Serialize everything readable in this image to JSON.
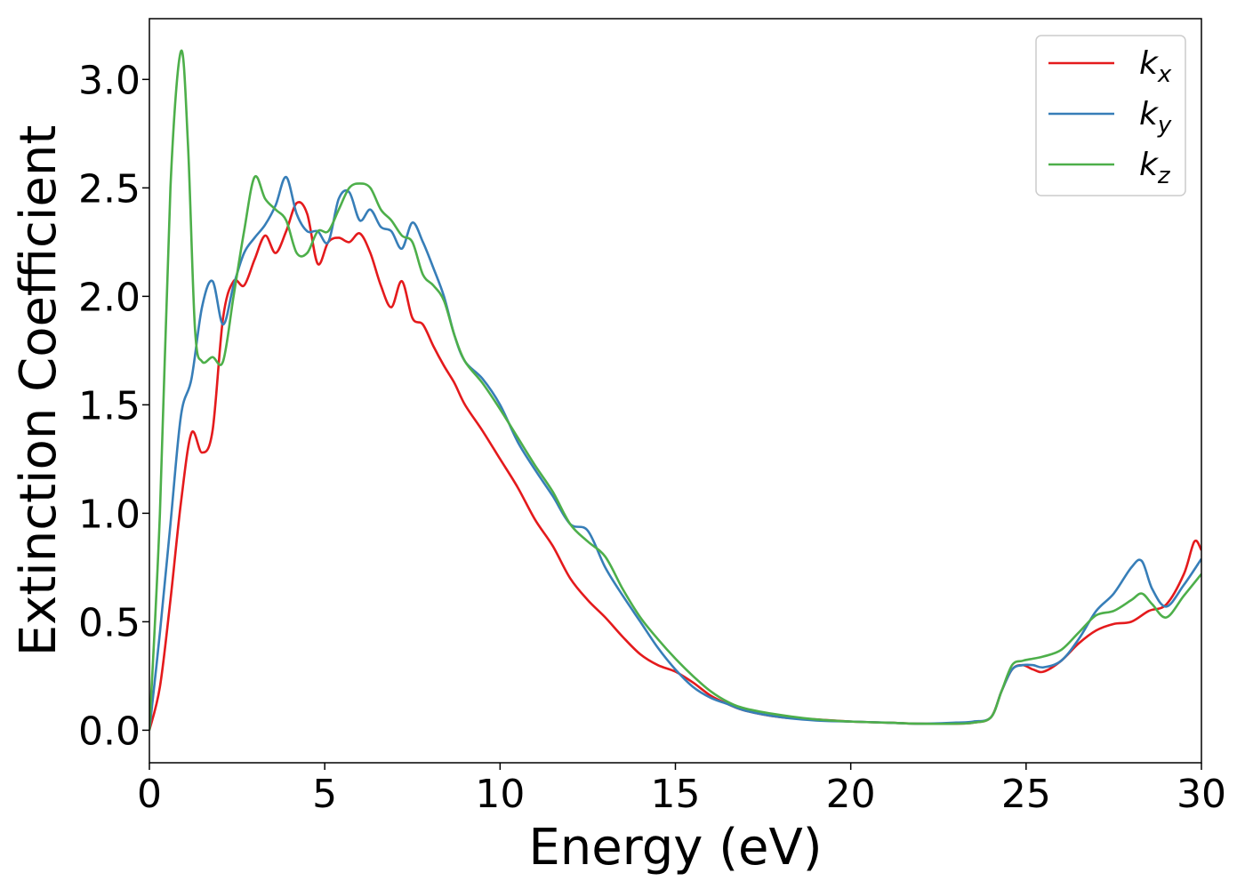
{
  "chart_data": {
    "type": "line",
    "title": "",
    "xlabel": "Energy (eV)",
    "ylabel": "Extinction Coefficient",
    "xlim": [
      0,
      30
    ],
    "ylim": [
      -0.15,
      3.28
    ],
    "xticks": [
      0,
      5,
      10,
      15,
      20,
      25,
      30
    ],
    "xtick_labels": [
      "0",
      "5",
      "10",
      "15",
      "20",
      "25",
      "30"
    ],
    "yticks": [
      0.0,
      0.5,
      1.0,
      1.5,
      2.0,
      2.5,
      3.0
    ],
    "ytick_labels": [
      "0.0",
      "0.5",
      "1.0",
      "1.5",
      "2.0",
      "2.5",
      "3.0"
    ],
    "grid": false,
    "legend_position": "top-right",
    "series": [
      {
        "name": "k",
        "subscript": "x",
        "color": "#e41a1c",
        "x": [
          0,
          0.3,
          0.6,
          0.9,
          1.2,
          1.5,
          1.8,
          2.1,
          2.4,
          2.7,
          3.0,
          3.3,
          3.6,
          3.9,
          4.2,
          4.5,
          4.8,
          5.1,
          5.4,
          5.7,
          6.0,
          6.3,
          6.6,
          6.9,
          7.2,
          7.5,
          7.8,
          8.1,
          8.4,
          8.7,
          9.0,
          9.5,
          10.0,
          10.5,
          11.0,
          11.5,
          12.0,
          12.5,
          13.0,
          13.5,
          14.0,
          14.5,
          15.0,
          15.5,
          16.0,
          16.5,
          17.0,
          18.0,
          19.0,
          20.0,
          21.0,
          22.0,
          23.0,
          23.5,
          24.0,
          24.3,
          24.6,
          24.9,
          25.2,
          25.5,
          26.0,
          26.5,
          27.0,
          27.5,
          28.0,
          28.5,
          29.0,
          29.5,
          29.8,
          30.0
        ],
        "values": [
          0.0,
          0.2,
          0.6,
          1.05,
          1.37,
          1.28,
          1.38,
          1.9,
          2.07,
          2.05,
          2.17,
          2.28,
          2.2,
          2.3,
          2.43,
          2.38,
          2.15,
          2.25,
          2.27,
          2.25,
          2.29,
          2.2,
          2.05,
          1.95,
          2.07,
          1.9,
          1.87,
          1.77,
          1.68,
          1.6,
          1.5,
          1.38,
          1.25,
          1.12,
          0.97,
          0.85,
          0.7,
          0.6,
          0.52,
          0.43,
          0.35,
          0.3,
          0.27,
          0.22,
          0.16,
          0.12,
          0.09,
          0.06,
          0.05,
          0.04,
          0.035,
          0.03,
          0.03,
          0.035,
          0.06,
          0.18,
          0.28,
          0.3,
          0.28,
          0.27,
          0.32,
          0.4,
          0.46,
          0.49,
          0.5,
          0.55,
          0.58,
          0.72,
          0.87,
          0.83
        ]
      },
      {
        "name": "k",
        "subscript": "y",
        "color": "#377eb8",
        "x": [
          0,
          0.3,
          0.6,
          0.9,
          1.2,
          1.5,
          1.8,
          2.1,
          2.4,
          2.7,
          3.0,
          3.3,
          3.6,
          3.9,
          4.2,
          4.5,
          4.8,
          5.1,
          5.4,
          5.7,
          6.0,
          6.3,
          6.6,
          6.9,
          7.2,
          7.5,
          7.8,
          8.1,
          8.4,
          8.7,
          9.0,
          9.5,
          10.0,
          10.5,
          11.0,
          11.5,
          12.0,
          12.5,
          13.0,
          13.5,
          14.0,
          14.5,
          15.0,
          15.5,
          16.0,
          16.5,
          17.0,
          18.0,
          19.0,
          20.0,
          21.0,
          22.0,
          23.0,
          23.5,
          24.0,
          24.3,
          24.6,
          24.9,
          25.2,
          25.5,
          26.0,
          26.5,
          27.0,
          27.5,
          28.0,
          28.3,
          28.6,
          29.0,
          29.5,
          30.0
        ],
        "values": [
          0.0,
          0.45,
          0.95,
          1.45,
          1.62,
          1.95,
          2.07,
          1.87,
          2.05,
          2.2,
          2.27,
          2.33,
          2.42,
          2.55,
          2.38,
          2.3,
          2.3,
          2.25,
          2.45,
          2.48,
          2.35,
          2.4,
          2.32,
          2.3,
          2.22,
          2.34,
          2.25,
          2.13,
          2.0,
          1.82,
          1.7,
          1.62,
          1.5,
          1.33,
          1.2,
          1.08,
          0.95,
          0.92,
          0.75,
          0.62,
          0.5,
          0.38,
          0.28,
          0.2,
          0.15,
          0.12,
          0.09,
          0.06,
          0.045,
          0.04,
          0.035,
          0.03,
          0.035,
          0.04,
          0.06,
          0.18,
          0.28,
          0.3,
          0.3,
          0.29,
          0.32,
          0.42,
          0.55,
          0.63,
          0.75,
          0.78,
          0.65,
          0.57,
          0.67,
          0.79
        ]
      },
      {
        "name": "k",
        "subscript": "z",
        "color": "#4daf4a",
        "x": [
          0,
          0.3,
          0.6,
          0.9,
          1.1,
          1.3,
          1.5,
          1.8,
          2.1,
          2.4,
          2.7,
          3.0,
          3.3,
          3.6,
          3.9,
          4.2,
          4.5,
          4.8,
          5.1,
          5.4,
          5.7,
          6.0,
          6.3,
          6.6,
          6.9,
          7.2,
          7.5,
          7.8,
          8.1,
          8.4,
          8.7,
          9.0,
          9.5,
          10.0,
          10.5,
          11.0,
          11.5,
          12.0,
          12.5,
          13.0,
          13.5,
          14.0,
          14.5,
          15.0,
          15.5,
          16.0,
          16.5,
          17.0,
          18.0,
          19.0,
          20.0,
          21.0,
          22.0,
          23.0,
          23.5,
          24.0,
          24.3,
          24.6,
          24.9,
          25.2,
          25.5,
          26.0,
          26.5,
          27.0,
          27.5,
          28.0,
          28.3,
          28.6,
          29.0,
          29.5,
          30.0
        ],
        "values": [
          0.0,
          1.0,
          2.5,
          3.13,
          2.7,
          1.85,
          1.7,
          1.72,
          1.7,
          2.0,
          2.3,
          2.55,
          2.45,
          2.4,
          2.35,
          2.2,
          2.2,
          2.3,
          2.3,
          2.4,
          2.5,
          2.52,
          2.5,
          2.4,
          2.35,
          2.28,
          2.25,
          2.1,
          2.05,
          1.98,
          1.82,
          1.7,
          1.6,
          1.48,
          1.35,
          1.22,
          1.1,
          0.95,
          0.87,
          0.8,
          0.65,
          0.52,
          0.42,
          0.33,
          0.25,
          0.18,
          0.13,
          0.1,
          0.07,
          0.05,
          0.04,
          0.035,
          0.03,
          0.03,
          0.035,
          0.06,
          0.18,
          0.3,
          0.32,
          0.33,
          0.34,
          0.37,
          0.45,
          0.53,
          0.55,
          0.6,
          0.63,
          0.58,
          0.52,
          0.62,
          0.72
        ]
      }
    ]
  }
}
